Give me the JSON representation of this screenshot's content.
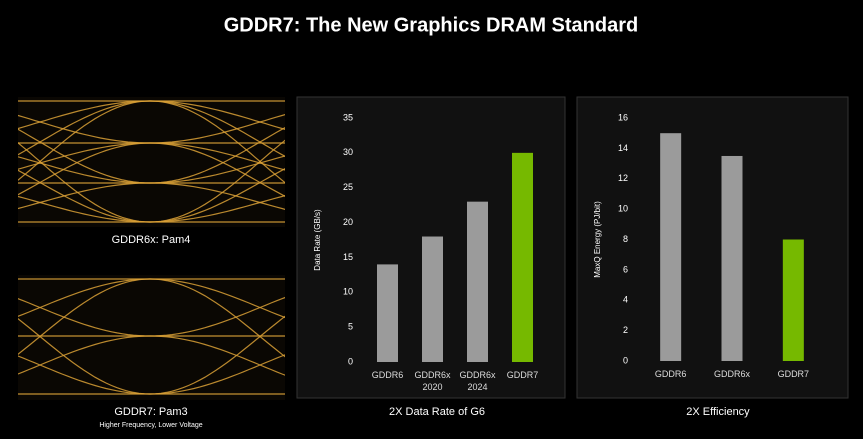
{
  "title": "GDDR7: The New Graphics DRAM Standard",
  "panels": [
    {
      "label": "GDDR6x: Pam4"
    },
    {
      "label": "GDDR7: Pam3",
      "sublabel": "Higher Frequency, Lower Voltage"
    }
  ],
  "chart_data": [
    {
      "type": "bar",
      "title": "2X Data Rate of G6",
      "ylabel": "Data Rate (GB/s)",
      "categories": [
        "GDDR6",
        "GDDR6x\n2020",
        "GDDR6x\n2024",
        "GDDR7"
      ],
      "values": [
        14,
        18,
        23,
        30
      ],
      "colors": [
        "#9b9b9b",
        "#9b9b9b",
        "#9b9b9b",
        "#76b900"
      ],
      "ylim": [
        0,
        35
      ],
      "yticks": [
        0,
        5,
        10,
        15,
        20,
        25,
        30,
        35
      ]
    },
    {
      "type": "bar",
      "title": "2X Efficiency",
      "ylabel": "MaxQ Energy (PJ/bit)",
      "categories": [
        "GDDR6",
        "GDDR6x",
        "GDDR7"
      ],
      "values": [
        15,
        13.5,
        8
      ],
      "colors": [
        "#9b9b9b",
        "#9b9b9b",
        "#76b900"
      ],
      "ylim": [
        0,
        16
      ],
      "yticks": [
        0,
        2,
        4,
        6,
        8,
        10,
        12,
        14,
        16
      ]
    }
  ]
}
